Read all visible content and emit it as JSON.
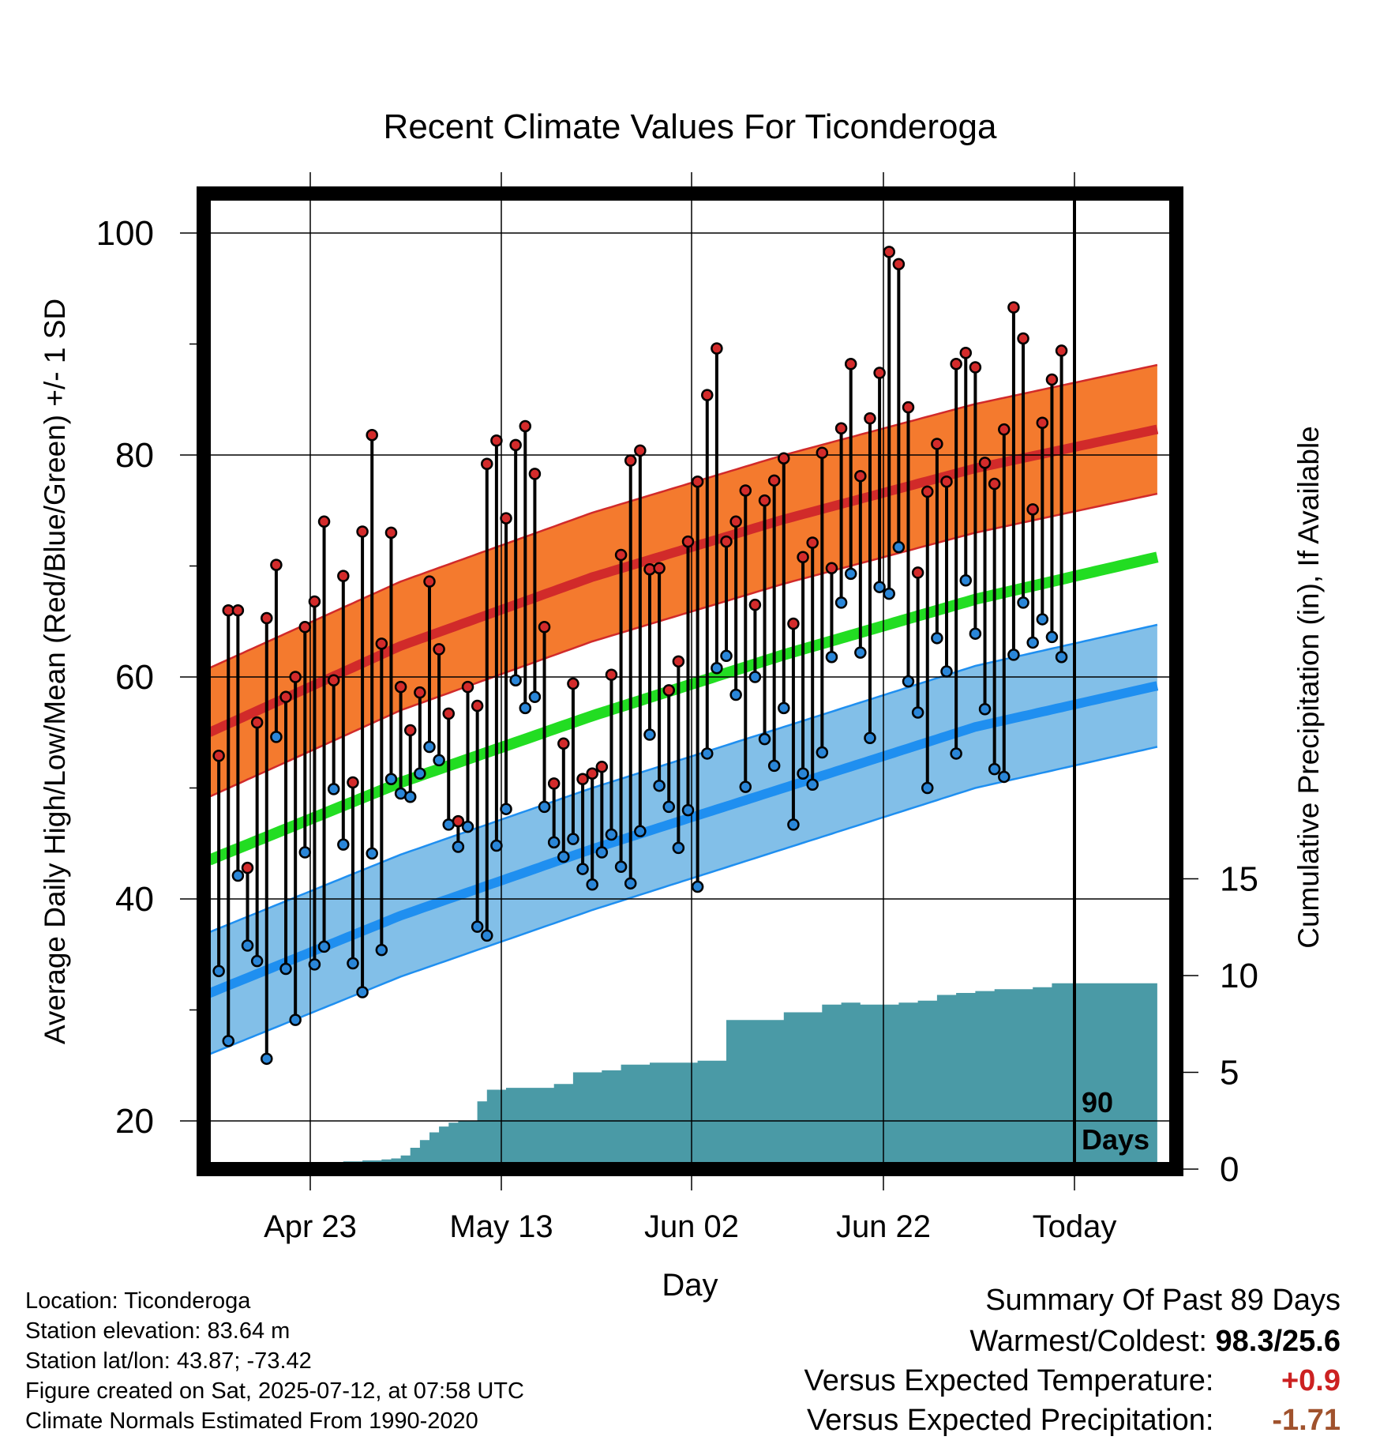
{
  "chart_data": {
    "type": "line",
    "title": "Recent Climate Values For Ticonderoga",
    "xlabel": "Day",
    "ylabel_left": "Average Daily High/Low/Mean (Red/Blue/Green) +/- 1 SD",
    "ylabel_right": "Cumulative Precipitation (in), If Available",
    "x_tick_labels": [
      "Apr 23",
      "May 13",
      "Jun 02",
      "Jun 22",
      "Today"
    ],
    "y_left_range": [
      15,
      104
    ],
    "y_left_ticks": [
      20,
      40,
      60,
      80,
      100
    ],
    "y_right_range": [
      0,
      30
    ],
    "y_right_ticks": [
      0,
      5,
      10,
      15
    ],
    "today_marker_label": [
      "90",
      "Days"
    ],
    "days_range": [
      -90,
      9
    ],
    "normal_high_mean": {
      "x": [
        -90,
        -70,
        -50,
        -30,
        -10,
        10
      ],
      "y": [
        55,
        62.8,
        69,
        74.2,
        78.8,
        82.5
      ]
    },
    "normal_high_sd": 5.8,
    "normal_low_mean": {
      "x": [
        -90,
        -70,
        -50,
        -30,
        -10,
        10
      ],
      "y": [
        31.5,
        38.5,
        44.5,
        50,
        55.5,
        59.4
      ]
    },
    "normal_low_sd": 5.5,
    "normal_mean": {
      "x": [
        -90,
        -70,
        -50,
        -30,
        -10,
        10
      ],
      "y": [
        43.5,
        50.5,
        56.5,
        62,
        67,
        71
      ]
    },
    "observed": {
      "x": [
        -89,
        -88,
        -87,
        -86,
        -85,
        -84,
        -83,
        -82,
        -81,
        -80,
        -79,
        -78,
        -77,
        -76,
        -75,
        -74,
        -73,
        -72,
        -71,
        -70,
        -69,
        -68,
        -67,
        -66,
        -65,
        -64,
        -63,
        -62,
        -61,
        -60,
        -59,
        -58,
        -57,
        -56,
        -55,
        -54,
        -53,
        -52,
        -51,
        -50,
        -49,
        -48,
        -47,
        -46,
        -45,
        -44,
        -43,
        -42,
        -41,
        -40,
        -39,
        -38,
        -37,
        -36,
        -35,
        -34,
        -33,
        -32,
        -31,
        -30,
        -29,
        -28,
        -27,
        -26,
        -25,
        -24,
        -23,
        -22,
        -21,
        -20,
        -19,
        -18,
        -17,
        -16,
        -15,
        -14,
        -13,
        -12,
        -11,
        -10,
        -9,
        -8,
        -7,
        -6,
        -5,
        -4,
        -3,
        -2,
        -1
      ],
      "high": [
        52.9,
        66,
        66,
        42.8,
        55.9,
        65.3,
        70.1,
        58.2,
        60,
        64.5,
        66.8,
        74,
        59.7,
        69.1,
        50.5,
        73.1,
        81.8,
        63,
        73,
        59.1,
        55.2,
        58.6,
        68.6,
        62.5,
        56.7,
        47,
        59.1,
        57.4,
        79.2,
        81.3,
        74.3,
        80.9,
        82.6,
        78.3,
        64.5,
        50.4,
        54,
        59.4,
        50.8,
        51.3,
        51.9,
        60.2,
        71,
        79.5,
        80.4,
        69.7,
        69.8,
        58.8,
        61.4,
        72.2,
        77.6,
        85.4,
        89.6,
        72.2,
        74,
        76.8,
        66.5,
        75.9,
        77.7,
        79.7,
        64.8,
        70.8,
        72.1,
        80.2,
        69.8,
        82.4,
        88.2,
        78.1,
        83.3,
        87.4,
        98.3,
        97.2,
        84.3,
        69.4,
        76.7,
        81,
        77.6,
        88.2,
        89.2,
        87.9,
        79.3,
        77.4,
        82.3,
        93.3,
        90.5,
        75.1,
        82.9,
        86.8,
        89.4
      ],
      "low": [
        33.5,
        27.2,
        42.1,
        35.8,
        34.4,
        25.6,
        54.6,
        33.7,
        29.1,
        44.2,
        34.1,
        35.7,
        49.9,
        44.9,
        34.2,
        31.6,
        44.1,
        35.4,
        50.8,
        49.5,
        49.2,
        51.3,
        53.7,
        52.5,
        46.7,
        44.7,
        46.5,
        37.5,
        36.7,
        44.8,
        48.1,
        59.7,
        57.2,
        58.2,
        48.3,
        45.1,
        43.8,
        45.4,
        42.7,
        41.3,
        44.2,
        45.8,
        42.9,
        41.4,
        46.1,
        54.8,
        50.2,
        48.3,
        44.6,
        48,
        41.1,
        53.1,
        60.8,
        61.9,
        58.4,
        50.1,
        60,
        54.4,
        52,
        57.2,
        46.7,
        51.3,
        50.3,
        53.2,
        61.8,
        66.7,
        69.3,
        62.2,
        54.5,
        68.1,
        67.5,
        71.7,
        59.6,
        56.8,
        50,
        63.5,
        60.5,
        53.1,
        68.7,
        63.9,
        57.1,
        51.7,
        51,
        62,
        66.7,
        63.1,
        65.2,
        63.6,
        61.8
      ]
    },
    "cumulative_precipitation": {
      "x": [
        -90,
        -82,
        -80,
        -76,
        -74,
        -72,
        -71,
        -70,
        -69,
        -68,
        -67,
        -66,
        -65,
        -64,
        -63,
        -62,
        -61,
        -59,
        -55,
        -54,
        -52,
        -50,
        -49,
        -47,
        -44,
        -42,
        -40,
        -39,
        -36,
        -35,
        -32,
        -30,
        -28,
        -26,
        -24,
        -22,
        -20,
        -18,
        -16,
        -14,
        -12,
        -10,
        -8,
        -6,
        -4,
        -2,
        0,
        9
      ],
      "y": [
        0,
        0,
        0,
        0.4,
        0.45,
        0.5,
        0.55,
        0.7,
        1.1,
        1.5,
        1.9,
        2.2,
        2.4,
        2.5,
        2.5,
        3.5,
        4.1,
        4.2,
        4.2,
        4.4,
        5,
        5,
        5.1,
        5.4,
        5.5,
        5.5,
        5.5,
        5.6,
        7.7,
        7.7,
        7.7,
        8.1,
        8.1,
        8.5,
        8.6,
        8.5,
        8.5,
        8.6,
        8.7,
        9,
        9.1,
        9.2,
        9.3,
        9.3,
        9.4,
        9.6,
        9.6,
        9.6
      ]
    }
  },
  "footer": {
    "location": "Location: Ticonderoga",
    "elevation": "Station elevation: 83.64 m",
    "latlon": "Station lat/lon: 43.87; -73.42",
    "created": "Figure created on Sat, 2025-07-12, at 07:58 UTC",
    "normals": "Climate Normals Estimated From 1990-2020"
  },
  "summary": {
    "heading": "Summary Of Past 89 Days",
    "warm_cold_label": "Warmest/Coldest:",
    "warm_cold_value": "98.3/25.6",
    "temp_label": "Versus Expected Temperature:",
    "temp_value": "+0.9",
    "temp_color": "#cc2222",
    "precip_label": "Versus Expected Precipitation:",
    "precip_value": "-1.71",
    "precip_color": "#a0522d"
  },
  "colors": {
    "high_band": "#f47a2e",
    "high_line": "#d12a2a",
    "low_band": "#82bfe8",
    "low_line": "#1f8ff0",
    "mean_line": "#22dd22",
    "precip_fill": "#4a9aa6",
    "high_dot": "#d32b2b",
    "low_dot": "#2a86d8"
  }
}
